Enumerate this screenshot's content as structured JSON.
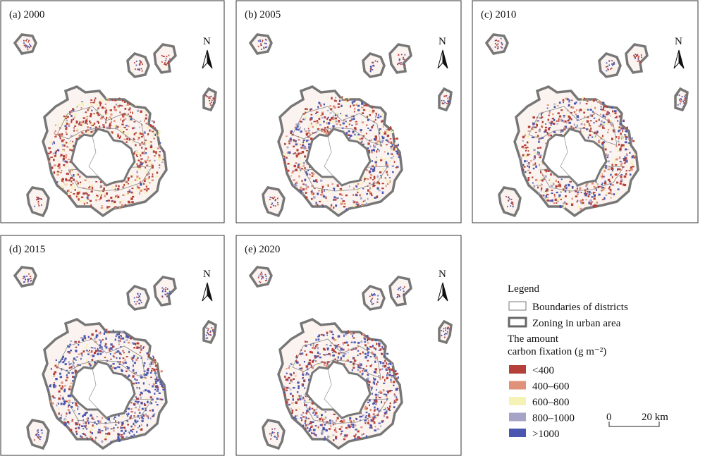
{
  "panels": [
    {
      "label": "(a) 2000"
    },
    {
      "label": "(b) 2005"
    },
    {
      "label": "(c) 2010"
    },
    {
      "label": "(d) 2015"
    },
    {
      "label": "(e) 2020"
    }
  ],
  "north": "N",
  "legend": {
    "title": "Legend",
    "boundaries": "Boundaries of districts",
    "zoning": "Zoning in urban area",
    "amount_line1": "The amount",
    "amount_line2": "carbon fixation (g m⁻²)",
    "classes": [
      {
        "label": "<400",
        "color": "#b5403a"
      },
      {
        "label": "400–600",
        "color": "#e0917a"
      },
      {
        "label": "600–800",
        "color": "#f6f1b4"
      },
      {
        "label": "800–1000",
        "color": "#a5a3c6"
      },
      {
        "label": ">1000",
        "color": "#4a56b0"
      }
    ]
  },
  "scale_bar": {
    "start": "0",
    "end": "20 km"
  }
}
